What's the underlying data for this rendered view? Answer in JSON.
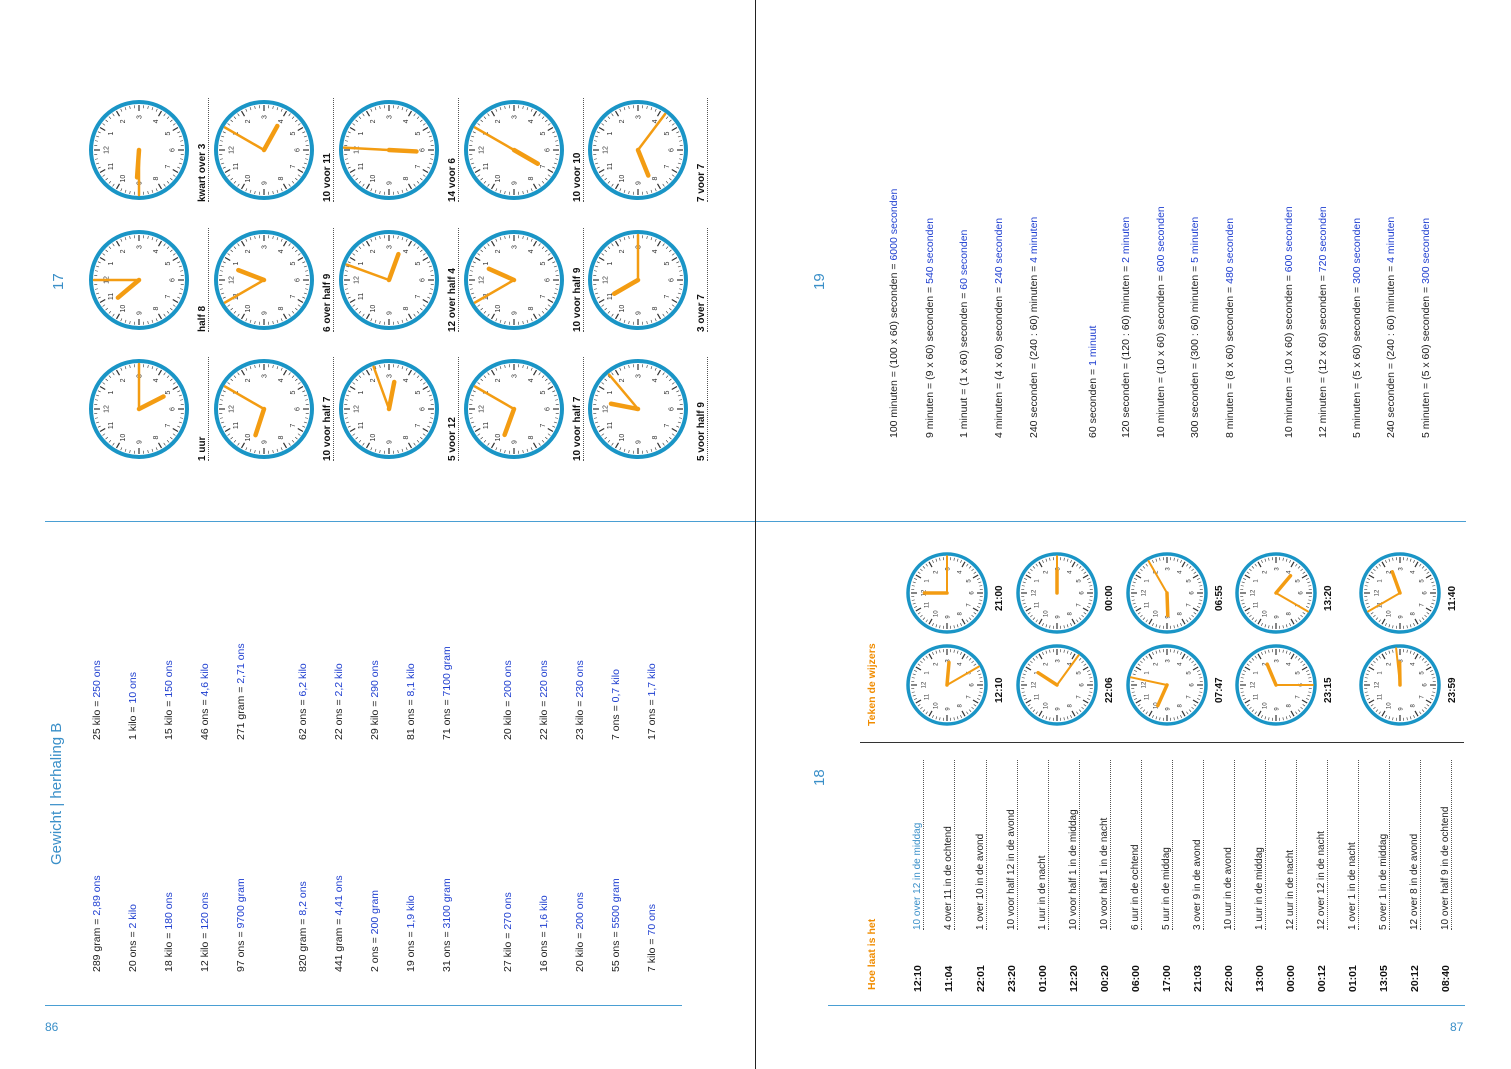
{
  "pages": {
    "left_number": "86",
    "right_number": "87"
  },
  "section17": {
    "number": "17",
    "rows": [
      [
        {
          "label": "kwart over 3",
          "hour_angle": 94,
          "minute_angle": 90
        },
        {
          "label": "10 voor 11",
          "hour_angle": 299,
          "minute_angle": 210
        },
        {
          "label": "14 voor 6",
          "hour_angle": 3,
          "minute_angle": 183
        },
        {
          "label": "10 voor 10",
          "hour_angle": 30,
          "minute_angle": 210
        },
        {
          "label": "7 voor 7",
          "hour_angle": 68,
          "minute_angle": 307
        }
      ],
      [
        {
          "label": "half 8",
          "hour_angle": 140,
          "minute_angle": 180
        },
        {
          "label": "6 over half 9",
          "hour_angle": 201,
          "minute_angle": 150
        },
        {
          "label": "12 over half 4",
          "hour_angle": 290,
          "minute_angle": 200
        },
        {
          "label": "10 voor half 9",
          "hour_angle": 204,
          "minute_angle": 150
        },
        {
          "label": "3 over 7",
          "hour_angle": 150,
          "minute_angle": 270
        }
      ],
      [
        {
          "label": "1 uur",
          "hour_angle": 333,
          "minute_angle": 270
        },
        {
          "label": "10 voor half 7",
          "hour_angle": 108,
          "minute_angle": 210
        },
        {
          "label": "5 voor 12",
          "hour_angle": 281,
          "minute_angle": 250
        },
        {
          "label": "10 voor half 7",
          "hour_angle": 110,
          "minute_angle": 210
        },
        {
          "label": "5 voor half 9",
          "hour_angle": 191,
          "minute_angle": 230
        }
      ]
    ]
  },
  "section19": {
    "number": "19",
    "lines": [
      {
        "expr": "100 minuten = (100 x 60) seconden  =",
        "answer": "6000 seconden"
      },
      {
        "expr": "9 minuten = (9 x 60) seconden  =",
        "answer": "540 seconden"
      },
      {
        "expr": "1 minuut = (1 x 60) seconden  =",
        "answer": "60 seconden"
      },
      {
        "expr": "4 minuten = (4 x 60) seconden  =",
        "answer": "240 seconden"
      },
      {
        "expr": "240 seconden = (240 : 60) minuten  =",
        "answer": "4 minuten"
      },
      {
        "expr": "60 seconden  =",
        "answer": "1 minuut"
      },
      {
        "expr": "120 seconden = (120 : 60) minuten  =",
        "answer": "2 minuten"
      },
      {
        "expr": "10 minuten = (10 x 60) seconden  =",
        "answer": "600 seconden"
      },
      {
        "expr": "300 seconden = (300 : 60) minuten  =",
        "answer": "5 minuten"
      },
      {
        "expr": "8 minuten = (8 x 60) seconden  =",
        "answer": "480 seconden"
      },
      {
        "expr": "10 minuten = (10 x 60) seconden  =",
        "answer": "600 seconden"
      },
      {
        "expr": "12 minuten = (12 x 60) seconden  =",
        "answer": "720 seconden"
      },
      {
        "expr": "5 minuten = (5 x 60) seconden  =",
        "answer": "300 seconden"
      },
      {
        "expr": "240 seconden = (240 : 60) minuten  =",
        "answer": "4 minuten"
      },
      {
        "expr": "5 minuten = (5 x 60) seconden  =",
        "answer": "300 seconden"
      }
    ]
  },
  "gewicht": {
    "title": "Gewicht  |  herhaling B",
    "bottom": [
      {
        "expr": "289 gram  =",
        "answer": "2,89 ons"
      },
      {
        "expr": "20 ons  =",
        "answer": "2 kilo"
      },
      {
        "expr": "18 kilo  =",
        "answer": "180 ons"
      },
      {
        "expr": "12 kilo  =",
        "answer": "120 ons"
      },
      {
        "expr": "97 ons  =",
        "answer": "9700 gram"
      },
      {
        "expr": "820 gram  =",
        "answer": "8,2 ons"
      },
      {
        "expr": "441 gram  =",
        "answer": "4,41 ons"
      },
      {
        "expr": "2 ons  =",
        "answer": "200 gram"
      },
      {
        "expr": "19 ons  =",
        "answer": "1,9 kilo"
      },
      {
        "expr": "31 ons  =",
        "answer": "3100 gram"
      },
      {
        "expr": "27 kilo  =",
        "answer": "270 ons"
      },
      {
        "expr": "16 ons  =",
        "answer": "1,6 kilo"
      },
      {
        "expr": "20 kilo  =",
        "answer": "200 ons"
      },
      {
        "expr": "55 ons  =",
        "answer": "5500 gram"
      },
      {
        "expr": "7 kilo  =",
        "answer": "70 ons"
      }
    ],
    "top": [
      {
        "expr": "25 kilo  =",
        "answer": "250 ons"
      },
      {
        "expr": "1 kilo  =",
        "answer": "10 ons"
      },
      {
        "expr": "15 kilo  =",
        "answer": "150 ons"
      },
      {
        "expr": "46 ons  =",
        "answer": "4,6 kilo"
      },
      {
        "expr": "271 gram  =",
        "answer": "2,71 ons"
      },
      {
        "expr": "62 ons  =",
        "answer": "6,2 kilo"
      },
      {
        "expr": "22 ons  =",
        "answer": "2,2 kilo"
      },
      {
        "expr": "29 kilo  =",
        "answer": "290 ons"
      },
      {
        "expr": "81 ons  =",
        "answer": "8,1 kilo"
      },
      {
        "expr": "71 ons  =",
        "answer": "7100 gram"
      },
      {
        "expr": "20 kilo  =",
        "answer": "200 ons"
      },
      {
        "expr": "22 kilo  =",
        "answer": "220 ons"
      },
      {
        "expr": "23 kilo  =",
        "answer": "230 ons"
      },
      {
        "expr": "7 ons  =",
        "answer": "0,7 kilo"
      },
      {
        "expr": "17 ons  =",
        "answer": "1,7 kilo"
      }
    ]
  },
  "section18": {
    "number": "18",
    "teken_title": "Teken de wijzers",
    "hoe_title": "Hoe laat is het",
    "clocks_top": [
      {
        "time": "21:00",
        "hour_angle": 180,
        "minute_angle": 270
      },
      {
        "time": "00:00",
        "hour_angle": 270,
        "minute_angle": 270
      },
      {
        "time": "06:55",
        "hour_angle": 88,
        "minute_angle": 240
      },
      {
        "time": "13:20",
        "hour_angle": 310,
        "minute_angle": 30
      },
      {
        "time": "11:40",
        "hour_angle": 250,
        "minute_angle": 150
      }
    ],
    "clocks_bottom": [
      {
        "time": "12:10",
        "hour_angle": 275,
        "minute_angle": 330
      },
      {
        "time": "22:06",
        "hour_angle": 213,
        "minute_angle": 306
      },
      {
        "time": "07:47",
        "hour_angle": 114,
        "minute_angle": 192
      },
      {
        "time": "23:15",
        "hour_angle": 247,
        "minute_angle": 0
      },
      {
        "time": "23:59",
        "hour_angle": 269,
        "minute_angle": 264
      }
    ],
    "rows": [
      {
        "time": "12:10",
        "answer": "10 over 12 in de middag"
      },
      {
        "time": "11:04",
        "answer": "4 over 11 in de ochtend"
      },
      {
        "time": "22:01",
        "answer": "1 over 10 in de avond"
      },
      {
        "time": "23:20",
        "answer": "10 voor half 12 in de avond"
      },
      {
        "time": "01:00",
        "answer": "1 uur in de nacht"
      },
      {
        "time": "12:20",
        "answer": "10 voor half 1 in de middag"
      },
      {
        "time": "00:20",
        "answer": "10 voor half 1 in de nacht"
      },
      {
        "time": "06:00",
        "answer": "6 uur in de ochtend"
      },
      {
        "time": "17:00",
        "answer": "5 uur in de middag"
      },
      {
        "time": "21:03",
        "answer": "3 over 9 in de avond"
      },
      {
        "time": "22:00",
        "answer": "10 uur in de avond"
      },
      {
        "time": "13:00",
        "answer": "1 uur in de middag"
      },
      {
        "time": "00:00",
        "answer": "12 uur in de nacht"
      },
      {
        "time": "00:12",
        "answer": "12 over 12 in de nacht"
      },
      {
        "time": "01:01",
        "answer": "1 over 1 in de nacht"
      },
      {
        "time": "13:05",
        "answer": "5 over 1 in de middag"
      },
      {
        "time": "20:12",
        "answer": "12 over 8 in de avond"
      },
      {
        "time": "08:40",
        "answer": "10 over half 9 in de ochtend"
      }
    ]
  }
}
